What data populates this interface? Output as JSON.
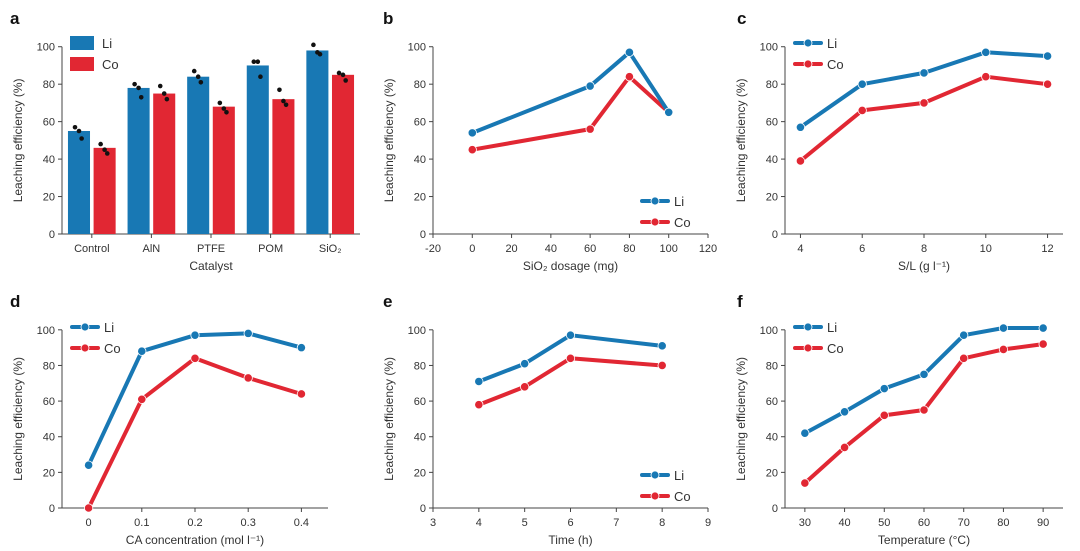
{
  "colors": {
    "li": "#1878b4",
    "co": "#e12733",
    "axis": "#444444"
  },
  "chart_data": [
    {
      "panel": "a",
      "type": "bar",
      "xlabel": "Catalyst",
      "ylabel": "Leaching efficiency (%)",
      "ylim": [
        0,
        110
      ],
      "yticks": [
        0,
        20,
        40,
        60,
        80,
        100
      ],
      "categories": [
        "Control",
        "AlN",
        "PTFE",
        "POM",
        "SiO₂"
      ],
      "series": [
        {
          "name": "Li",
          "values": [
            55,
            78,
            84,
            90,
            98
          ],
          "points": [
            [
              57,
              55,
              51
            ],
            [
              80,
              78,
              73
            ],
            [
              87,
              84,
              81
            ],
            [
              92,
              92,
              84
            ],
            [
              101,
              97,
              96
            ]
          ]
        },
        {
          "name": "Co",
          "values": [
            46,
            75,
            68,
            72,
            85
          ],
          "points": [
            [
              48,
              45,
              43
            ],
            [
              79,
              75,
              72
            ],
            [
              70,
              67,
              65
            ],
            [
              77,
              71,
              69
            ],
            [
              86,
              85,
              82
            ]
          ]
        }
      ],
      "legend": "top-left"
    },
    {
      "panel": "b",
      "type": "line",
      "xlabel": "SiO₂ dosage (mg)",
      "ylabel": "Leaching efficiency (%)",
      "xlim": [
        -20,
        120
      ],
      "xticks": [
        -20,
        0,
        20,
        40,
        60,
        80,
        100,
        120
      ],
      "ylim": [
        0,
        110
      ],
      "yticks": [
        0,
        20,
        40,
        60,
        80,
        100
      ],
      "x": [
        0,
        60,
        80,
        100
      ],
      "series": [
        {
          "name": "Li",
          "values": [
            54,
            79,
            97,
            65
          ]
        },
        {
          "name": "Co",
          "values": [
            45,
            56,
            84,
            65
          ]
        }
      ],
      "legend": "bottom-right"
    },
    {
      "panel": "c",
      "type": "line",
      "xlabel": "S/L (g l⁻¹)",
      "ylabel": "Leaching efficiency (%)",
      "xlim": [
        3.5,
        12.5
      ],
      "xticks": [
        4,
        6,
        8,
        10,
        12
      ],
      "ylim": [
        0,
        110
      ],
      "yticks": [
        0,
        20,
        40,
        60,
        80,
        100
      ],
      "x": [
        4,
        6,
        8,
        10,
        12
      ],
      "series": [
        {
          "name": "Li",
          "values": [
            57,
            80,
            86,
            97,
            95
          ]
        },
        {
          "name": "Co",
          "values": [
            39,
            66,
            70,
            84,
            80
          ]
        }
      ],
      "legend": "top-left"
    },
    {
      "panel": "d",
      "type": "line",
      "xlabel": "CA concentration (mol l⁻¹)",
      "ylabel": "Leaching efficiency (%)",
      "xlim": [
        -0.05,
        0.45
      ],
      "xticks": [
        0,
        0.1,
        0.2,
        0.3,
        0.4
      ],
      "ylim": [
        0,
        110
      ],
      "yticks": [
        0,
        20,
        40,
        60,
        80,
        100
      ],
      "x": [
        0,
        0.1,
        0.2,
        0.3,
        0.4
      ],
      "series": [
        {
          "name": "Li",
          "values": [
            24,
            88,
            97,
            98,
            90
          ]
        },
        {
          "name": "Co",
          "values": [
            0,
            61,
            84,
            73,
            64
          ]
        }
      ],
      "legend": "top-left"
    },
    {
      "panel": "e",
      "type": "line",
      "xlabel": "Time (h)",
      "ylabel": "Leaching efficiency (%)",
      "xlim": [
        3,
        9
      ],
      "xticks": [
        3,
        4,
        5,
        6,
        7,
        8,
        9
      ],
      "ylim": [
        0,
        110
      ],
      "yticks": [
        0,
        20,
        40,
        60,
        80,
        100
      ],
      "x": [
        4,
        5,
        6,
        8
      ],
      "series": [
        {
          "name": "Li",
          "values": [
            71,
            81,
            97,
            91
          ]
        },
        {
          "name": "Co",
          "values": [
            58,
            68,
            84,
            80
          ]
        }
      ],
      "legend": "bottom-right"
    },
    {
      "panel": "f",
      "type": "line",
      "xlabel": "Temperature (°C)",
      "ylabel": "Leaching efficiency (%)",
      "xlim": [
        25,
        95
      ],
      "xticks": [
        30,
        40,
        50,
        60,
        70,
        80,
        90
      ],
      "ylim": [
        0,
        110
      ],
      "yticks": [
        0,
        20,
        40,
        60,
        80,
        100
      ],
      "x": [
        30,
        40,
        50,
        60,
        70,
        80,
        90
      ],
      "series": [
        {
          "name": "Li",
          "values": [
            42,
            54,
            67,
            75,
            97,
            101,
            101
          ]
        },
        {
          "name": "Co",
          "values": [
            14,
            34,
            52,
            55,
            84,
            89,
            92
          ]
        }
      ],
      "legend": "top-left"
    }
  ]
}
